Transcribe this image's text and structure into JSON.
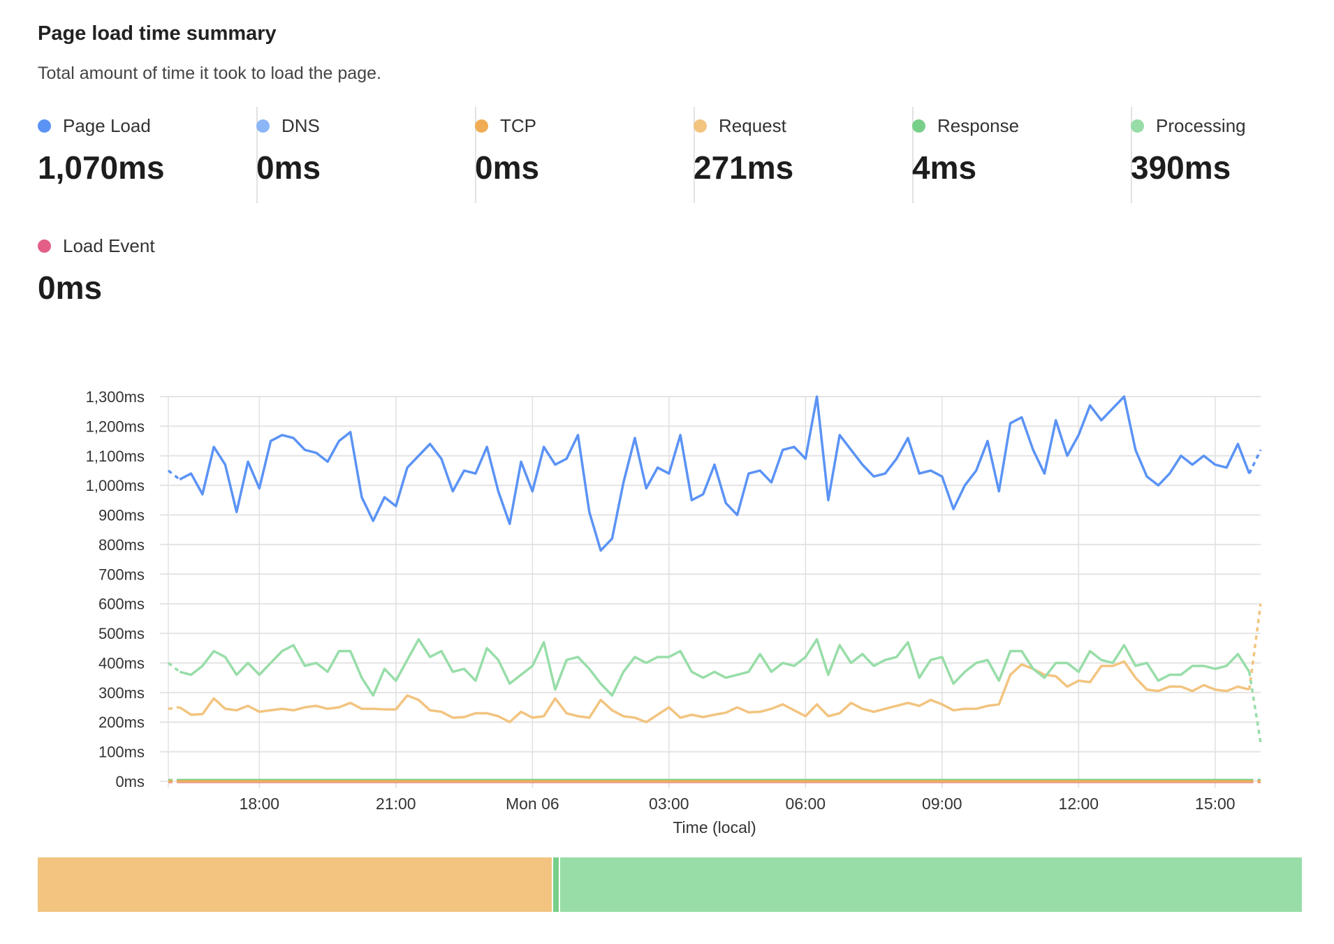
{
  "header": {
    "title": "Page load time summary",
    "subtitle": "Total amount of time it took to load the page."
  },
  "stats": [
    {
      "label": "Page Load",
      "value": "1,070ms",
      "color": "#5B93F5"
    },
    {
      "label": "DNS",
      "value": "0ms",
      "color": "#8DB6F7"
    },
    {
      "label": "TCP",
      "value": "0ms",
      "color": "#F0AD55"
    },
    {
      "label": "Request",
      "value": "271ms",
      "color": "#F2C480"
    },
    {
      "label": "Response",
      "value": "4ms",
      "color": "#78CF8A"
    },
    {
      "label": "Processing",
      "value": "390ms",
      "color": "#98DDA8"
    },
    {
      "label": "Load Event",
      "value": "0ms",
      "color": "#E35F88"
    }
  ],
  "chart_data": {
    "type": "line",
    "xlabel": "Time (local)",
    "ylabel": "",
    "ylim": [
      0,
      1300
    ],
    "y_ticks": [
      "0ms",
      "100ms",
      "200ms",
      "300ms",
      "400ms",
      "500ms",
      "600ms",
      "700ms",
      "800ms",
      "900ms",
      "1,000ms",
      "1,100ms",
      "1,200ms",
      "1,300ms"
    ],
    "x_range": [
      "16:00",
      "16:00 (next day)"
    ],
    "x_interval_minutes": 15,
    "x_ticks": [
      "18:00",
      "21:00",
      "Mon 06",
      "03:00",
      "06:00",
      "09:00",
      "12:00",
      "15:00"
    ],
    "grid": true,
    "first_and_last_segment_dashed": true,
    "series": [
      {
        "name": "Page Load",
        "color": "#5B93F5",
        "values": [
          1050,
          1020,
          1040,
          970,
          1130,
          1070,
          910,
          1080,
          990,
          1150,
          1170,
          1160,
          1120,
          1110,
          1080,
          1150,
          1180,
          960,
          880,
          960,
          930,
          1060,
          1100,
          1140,
          1090,
          980,
          1050,
          1040,
          1130,
          980,
          870,
          1080,
          980,
          1130,
          1070,
          1090,
          1170,
          910,
          780,
          820,
          1010,
          1160,
          990,
          1060,
          1040,
          1170,
          950,
          970,
          1070,
          940,
          900,
          1040,
          1050,
          1010,
          1120,
          1130,
          1090,
          1300,
          950,
          1170,
          1120,
          1070,
          1030,
          1040,
          1090,
          1160,
          1040,
          1050,
          1030,
          920,
          1000,
          1050,
          1150,
          980,
          1210,
          1230,
          1120,
          1040,
          1220,
          1100,
          1170,
          1270,
          1220,
          1260,
          1300,
          1120,
          1030,
          1000,
          1040,
          1100,
          1070,
          1100,
          1070,
          1060,
          1140,
          1040,
          1120
        ]
      },
      {
        "name": "Processing",
        "color": "#98DDA8",
        "values": [
          400,
          370,
          360,
          390,
          440,
          420,
          360,
          400,
          360,
          400,
          440,
          460,
          390,
          400,
          370,
          440,
          440,
          350,
          290,
          380,
          340,
          410,
          480,
          420,
          440,
          370,
          380,
          340,
          450,
          410,
          330,
          360,
          390,
          470,
          310,
          410,
          420,
          380,
          330,
          290,
          370,
          420,
          400,
          420,
          420,
          440,
          370,
          350,
          370,
          350,
          360,
          370,
          430,
          370,
          400,
          390,
          420,
          480,
          360,
          460,
          400,
          430,
          390,
          410,
          420,
          470,
          350,
          410,
          420,
          330,
          370,
          400,
          410,
          340,
          440,
          440,
          380,
          350,
          400,
          400,
          370,
          440,
          410,
          400,
          460,
          390,
          400,
          340,
          360,
          360,
          390,
          390,
          380,
          390,
          430,
          370,
          130
        ]
      },
      {
        "name": "Request",
        "color": "#F2C480",
        "values": [
          245,
          250,
          225,
          227,
          280,
          245,
          240,
          255,
          235,
          240,
          245,
          240,
          250,
          255,
          245,
          250,
          265,
          245,
          245,
          243,
          243,
          290,
          275,
          240,
          235,
          215,
          217,
          230,
          230,
          220,
          200,
          235,
          215,
          220,
          280,
          230,
          220,
          215,
          275,
          240,
          220,
          215,
          200,
          225,
          250,
          215,
          225,
          217,
          225,
          232,
          250,
          233,
          235,
          245,
          260,
          240,
          220,
          260,
          220,
          230,
          265,
          245,
          235,
          245,
          255,
          265,
          255,
          275,
          260,
          240,
          245,
          245,
          255,
          260,
          360,
          395,
          380,
          360,
          355,
          320,
          340,
          335,
          390,
          390,
          405,
          350,
          310,
          305,
          320,
          320,
          305,
          325,
          310,
          305,
          320,
          310,
          600
        ]
      },
      {
        "name": "DNS",
        "color": "#8DB6F7",
        "values": [
          0,
          0,
          0,
          0,
          0,
          0,
          0,
          0,
          0,
          0,
          0,
          0,
          0,
          0,
          0,
          0,
          0,
          0,
          0,
          0,
          0,
          0,
          0,
          0,
          0,
          0,
          0,
          0,
          0,
          0,
          0,
          0,
          0,
          0,
          0,
          0,
          0,
          0,
          0,
          0,
          0,
          0,
          0,
          0,
          0,
          0,
          0,
          0,
          0,
          0,
          0,
          0,
          0,
          0,
          0,
          0,
          0,
          0,
          0,
          0,
          0,
          0,
          0,
          0,
          0,
          0,
          0,
          0,
          0,
          0,
          0,
          0,
          0,
          0,
          0,
          0,
          0,
          0,
          0,
          0,
          0,
          0,
          0,
          0,
          0,
          0,
          0,
          0,
          0,
          0,
          0,
          0,
          0,
          0,
          0,
          0
        ]
      },
      {
        "name": "TCP",
        "color": "#F0AD55",
        "values": [
          0,
          0,
          0,
          0,
          0,
          0,
          0,
          0,
          0,
          0,
          0,
          0,
          0,
          0,
          0,
          0,
          0,
          0,
          0,
          0,
          0,
          0,
          0,
          0,
          0,
          0,
          0,
          0,
          0,
          0,
          0,
          0,
          0,
          0,
          0,
          0,
          0,
          0,
          0,
          0,
          0,
          0,
          0,
          0,
          0,
          0,
          0,
          0,
          0,
          0,
          0,
          0,
          0,
          0,
          0,
          0,
          0,
          0,
          0,
          0,
          0,
          0,
          0,
          0,
          0,
          0,
          0,
          0,
          0,
          0,
          0,
          0,
          0,
          0,
          0,
          0,
          0,
          0,
          0,
          0,
          0,
          0,
          0,
          0,
          0,
          0,
          0,
          0,
          0,
          0,
          0,
          0,
          0,
          0,
          0,
          0
        ]
      },
      {
        "name": "Response",
        "color": "#78CF8A",
        "values": [
          4,
          4,
          4,
          4,
          4,
          4,
          4,
          4,
          4,
          4,
          4,
          4,
          4,
          4,
          4,
          4,
          4,
          4,
          4,
          4,
          4,
          4,
          4,
          4,
          4,
          4,
          4,
          4,
          4,
          4,
          4,
          4,
          4,
          4,
          4,
          4,
          4,
          4,
          4,
          4,
          4,
          4,
          4,
          4,
          4,
          4,
          4,
          4,
          4,
          4,
          4,
          4,
          4,
          4,
          4,
          4,
          4,
          4,
          4,
          4,
          4,
          4,
          4,
          4,
          4,
          4,
          4,
          4,
          4,
          4,
          4,
          4,
          4,
          4,
          4,
          4,
          4,
          4,
          4,
          4,
          4,
          4,
          4,
          4,
          4,
          4,
          4,
          4,
          4,
          4,
          4,
          4,
          4,
          4,
          4,
          4
        ]
      },
      {
        "name": "Load Event",
        "color": "#E35F88",
        "values": [
          0,
          0,
          0,
          0,
          0,
          0,
          0,
          0,
          0,
          0,
          0,
          0,
          0,
          0,
          0,
          0,
          0,
          0,
          0,
          0,
          0,
          0,
          0,
          0,
          0,
          0,
          0,
          0,
          0,
          0,
          0,
          0,
          0,
          0,
          0,
          0,
          0,
          0,
          0,
          0,
          0,
          0,
          0,
          0,
          0,
          0,
          0,
          0,
          0,
          0,
          0,
          0,
          0,
          0,
          0,
          0,
          0,
          0,
          0,
          0,
          0,
          0,
          0,
          0,
          0,
          0,
          0,
          0,
          0,
          0,
          0,
          0,
          0,
          0,
          0,
          0,
          0,
          0,
          0,
          0,
          0,
          0,
          0,
          0,
          0,
          0,
          0,
          0,
          0,
          0,
          0,
          0,
          0,
          0,
          0,
          0
        ]
      }
    ]
  },
  "breakdown_bar": [
    {
      "name": "Request",
      "value": 271,
      "color": "#F2C480"
    },
    {
      "name": "Response",
      "value": 4,
      "color": "#78CF8A"
    },
    {
      "name": "Processing",
      "value": 390,
      "color": "#98DDA8"
    }
  ]
}
